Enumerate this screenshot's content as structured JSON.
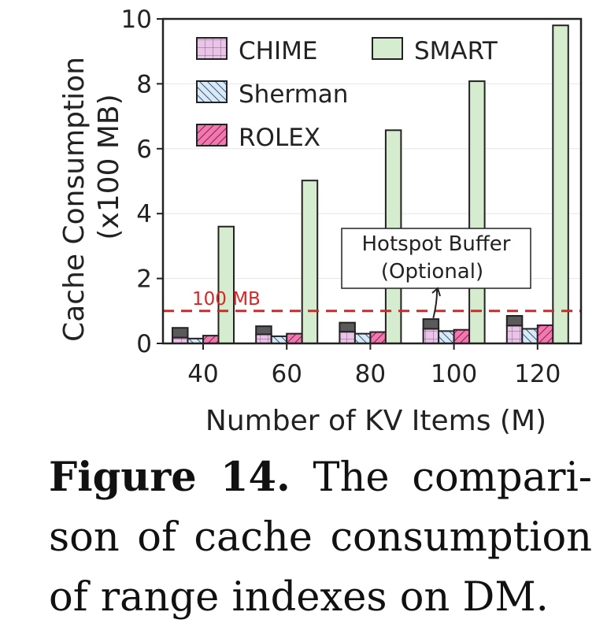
{
  "chart_data": {
    "type": "bar",
    "xlabel": "Number of KV Items (M)",
    "ylabel_line1": "Cache Consumption",
    "ylabel_line2": "(x100 MB)",
    "ylim": [
      0,
      10
    ],
    "yticks": [
      0,
      2,
      4,
      6,
      8,
      10
    ],
    "categories": [
      "40",
      "60",
      "80",
      "100",
      "120"
    ],
    "series": [
      {
        "name": "CHIME",
        "values": [
          0.18,
          0.28,
          0.36,
          0.45,
          0.55
        ],
        "hotspot_buffer": [
          0.3,
          0.25,
          0.28,
          0.3,
          0.3
        ],
        "color": "#e8c4e6",
        "hatch": "grid"
      },
      {
        "name": "Sherman",
        "values": [
          0.15,
          0.22,
          0.3,
          0.38,
          0.45
        ],
        "color": "#d9e9f7",
        "hatch": "backslash"
      },
      {
        "name": "ROLEX",
        "values": [
          0.24,
          0.3,
          0.35,
          0.42,
          0.56
        ],
        "color": "#f07ab0",
        "hatch": "slash"
      },
      {
        "name": "SMART",
        "values": [
          3.6,
          5.02,
          6.57,
          8.08,
          9.8
        ],
        "color": "#d6ecce",
        "hatch": "none"
      }
    ],
    "reference_line": {
      "value": 1.0,
      "label": "100 MB",
      "color": "#d62728"
    },
    "annotation": {
      "line1": "Hotspot Buffer",
      "line2": "(Optional)",
      "target_category": "100"
    },
    "legend_position": "top-left",
    "grid": "horizontal"
  },
  "caption": {
    "label": "Figure 14.",
    "text": "The compari-son of cache consumption of range indexes on DM."
  }
}
